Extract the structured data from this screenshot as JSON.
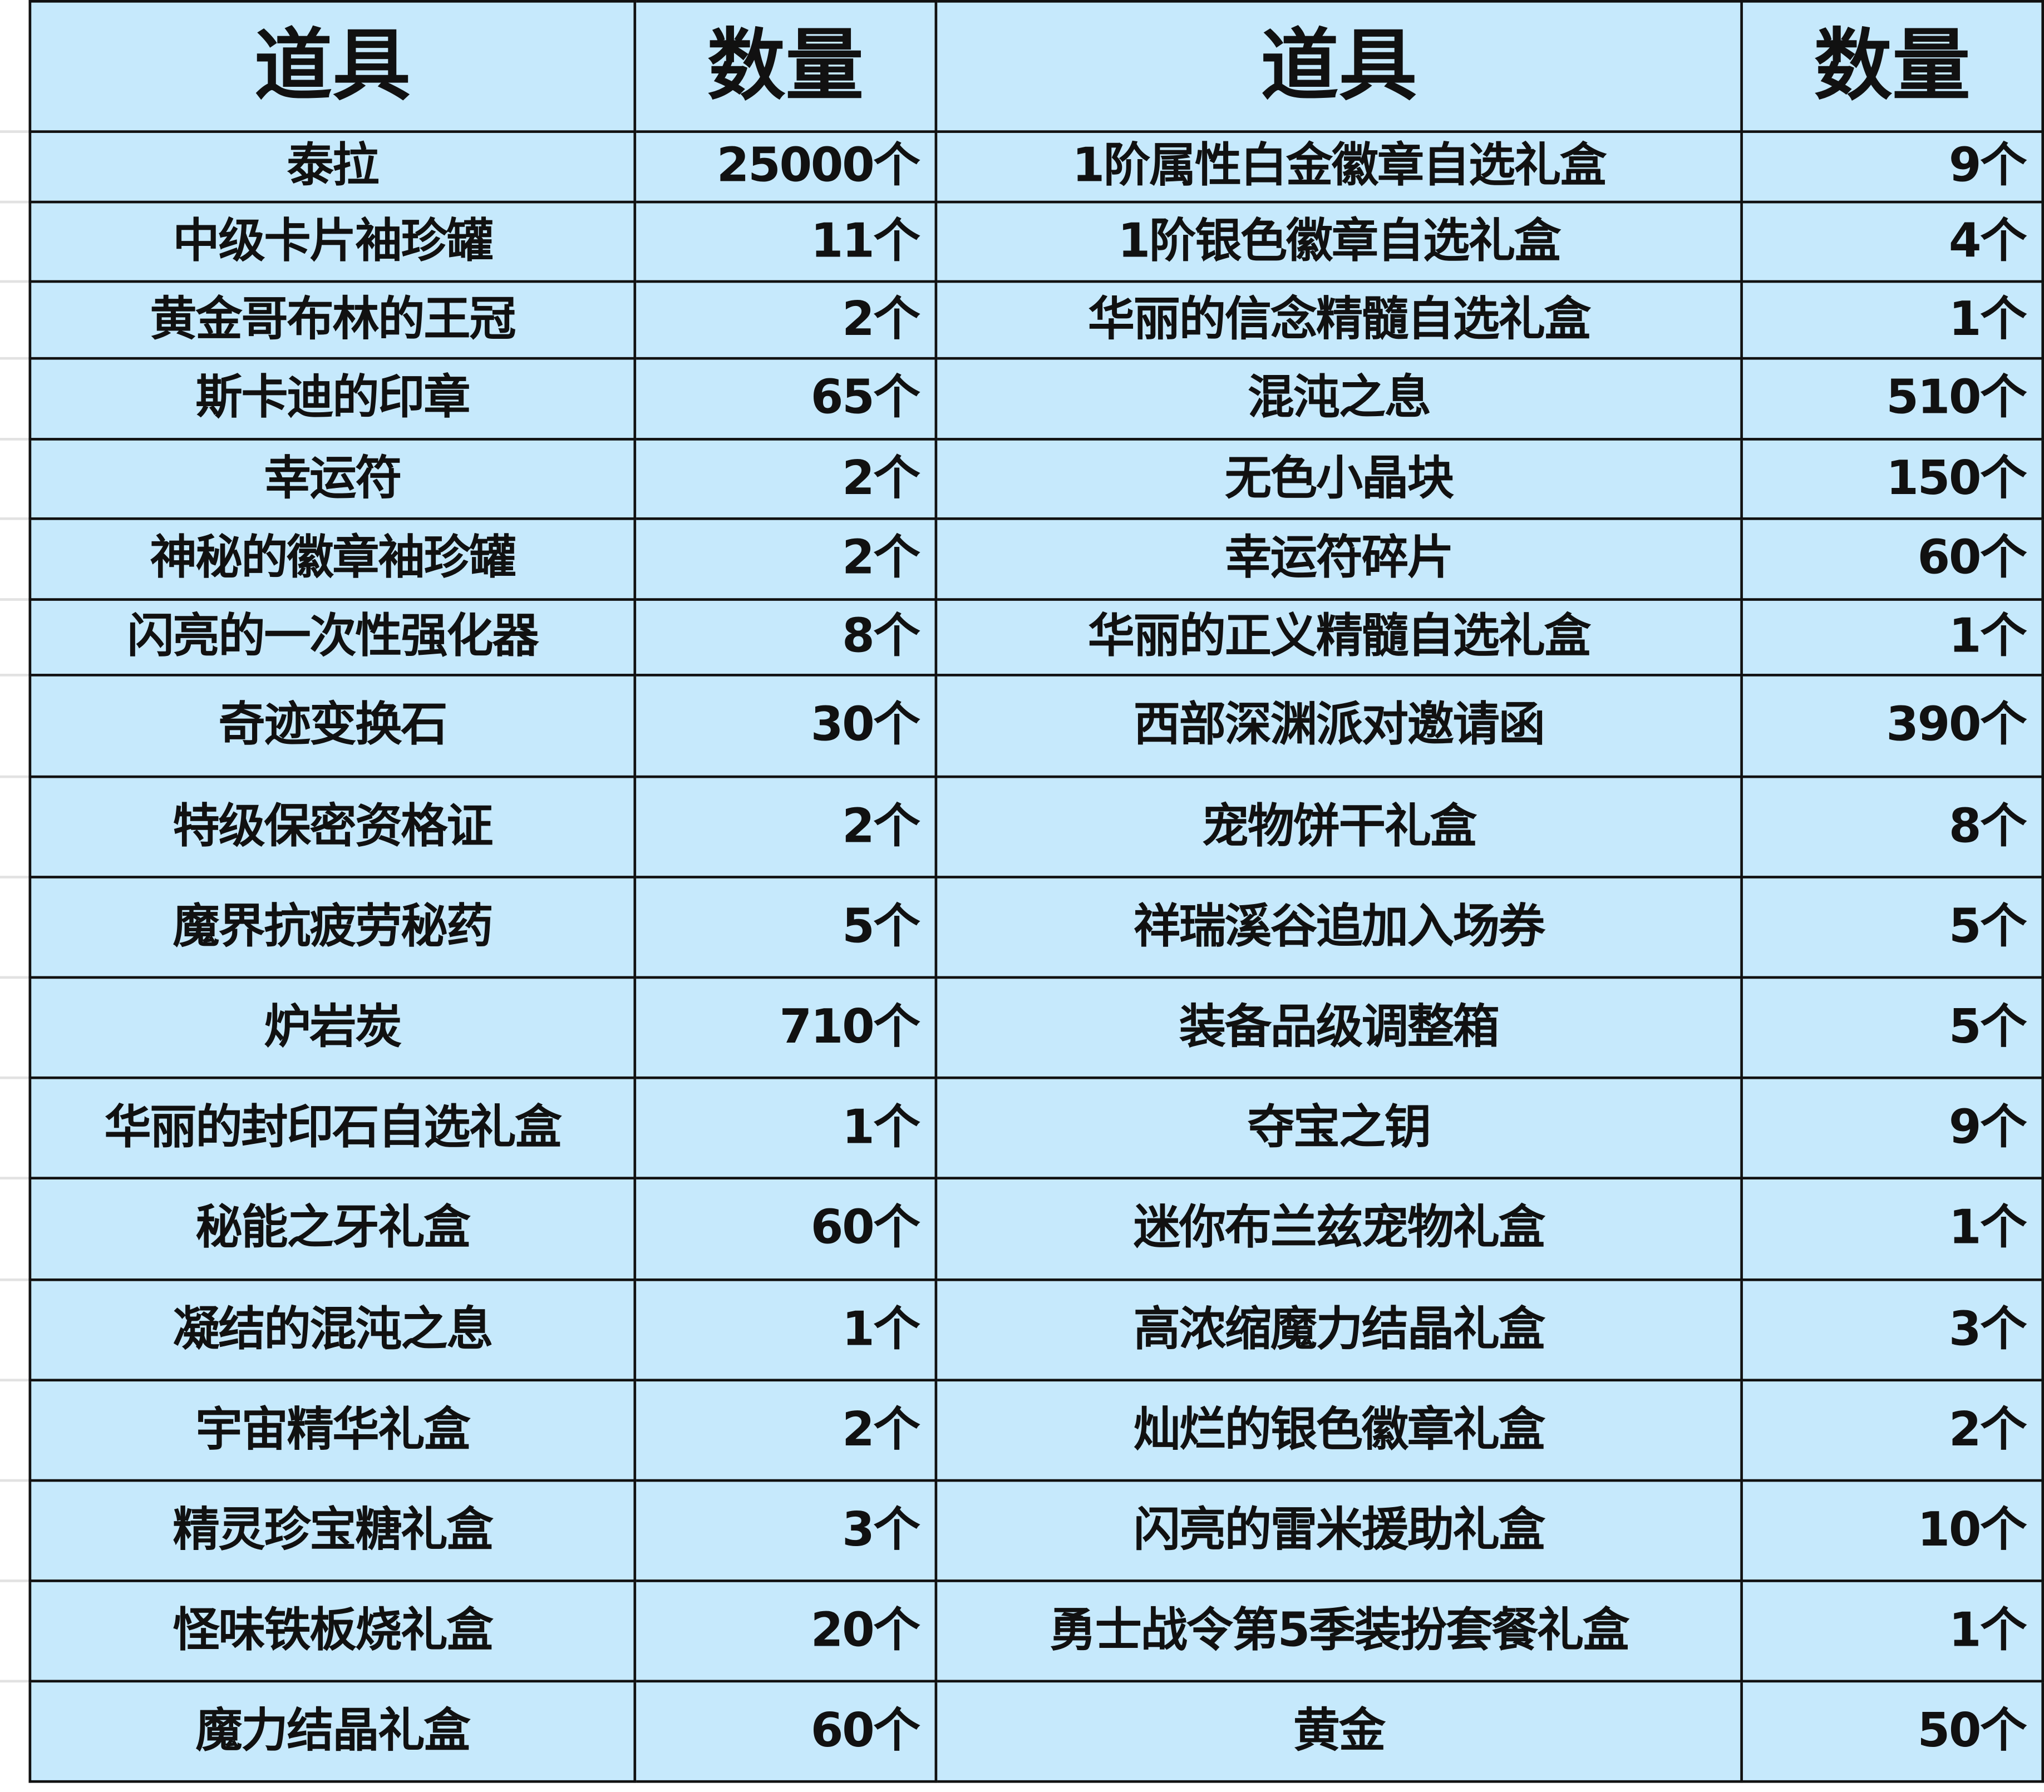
{
  "headers": [
    "道具",
    "数量",
    "道具",
    "数量"
  ],
  "colors": {
    "cell_background": "#c6e9fc",
    "border": "#111111"
  },
  "rows": [
    {
      "item_left": "泰拉",
      "qty_left": "25000个",
      "item_right": "1阶属性白金徽章自选礼盒",
      "qty_right": "9个"
    },
    {
      "item_left": "中级卡片袖珍罐",
      "qty_left": "11个",
      "item_right": "1阶银色徽章自选礼盒",
      "qty_right": "4个"
    },
    {
      "item_left": "黄金哥布林的王冠",
      "qty_left": "2个",
      "item_right": "华丽的信念精髓自选礼盒",
      "qty_right": "1个"
    },
    {
      "item_left": "斯卡迪的印章",
      "qty_left": "65个",
      "item_right": "混沌之息",
      "qty_right": "510个"
    },
    {
      "item_left": "幸运符",
      "qty_left": "2个",
      "item_right": "无色小晶块",
      "qty_right": "150个"
    },
    {
      "item_left": "神秘的徽章袖珍罐",
      "qty_left": "2个",
      "item_right": "幸运符碎片",
      "qty_right": "60个"
    },
    {
      "item_left": "闪亮的一次性强化器",
      "qty_left": "8个",
      "item_right": "华丽的正义精髓自选礼盒",
      "qty_right": "1个"
    },
    {
      "item_left": "奇迹变换石",
      "qty_left": "30个",
      "item_right": "西部深渊派对邀请函",
      "qty_right": "390个"
    },
    {
      "item_left": "特级保密资格证",
      "qty_left": "2个",
      "item_right": "宠物饼干礼盒",
      "qty_right": "8个"
    },
    {
      "item_left": "魔界抗疲劳秘药",
      "qty_left": "5个",
      "item_right": "祥瑞溪谷追加入场券",
      "qty_right": "5个"
    },
    {
      "item_left": "炉岩炭",
      "qty_left": "710个",
      "item_right": "装备品级调整箱",
      "qty_right": "5个"
    },
    {
      "item_left": "华丽的封印石自选礼盒",
      "qty_left": "1个",
      "item_right": "夺宝之钥",
      "qty_right": "9个"
    },
    {
      "item_left": "秘能之牙礼盒",
      "qty_left": "60个",
      "item_right": "迷你布兰兹宠物礼盒",
      "qty_right": "1个"
    },
    {
      "item_left": "凝结的混沌之息",
      "qty_left": "1个",
      "item_right": "高浓缩魔力结晶礼盒",
      "qty_right": "3个"
    },
    {
      "item_left": "宇宙精华礼盒",
      "qty_left": "2个",
      "item_right": "灿烂的银色徽章礼盒",
      "qty_right": "2个"
    },
    {
      "item_left": "精灵珍宝糖礼盒",
      "qty_left": "3个",
      "item_right": "闪亮的雷米援助礼盒",
      "qty_right": "10个"
    },
    {
      "item_left": "怪味铁板烧礼盒",
      "qty_left": "20个",
      "item_right": "勇士战令第5季装扮套餐礼盒",
      "qty_right": "1个"
    },
    {
      "item_left": "魔力结晶礼盒",
      "qty_left": "60个",
      "item_right": "黄金",
      "qty_right": "50个"
    }
  ]
}
